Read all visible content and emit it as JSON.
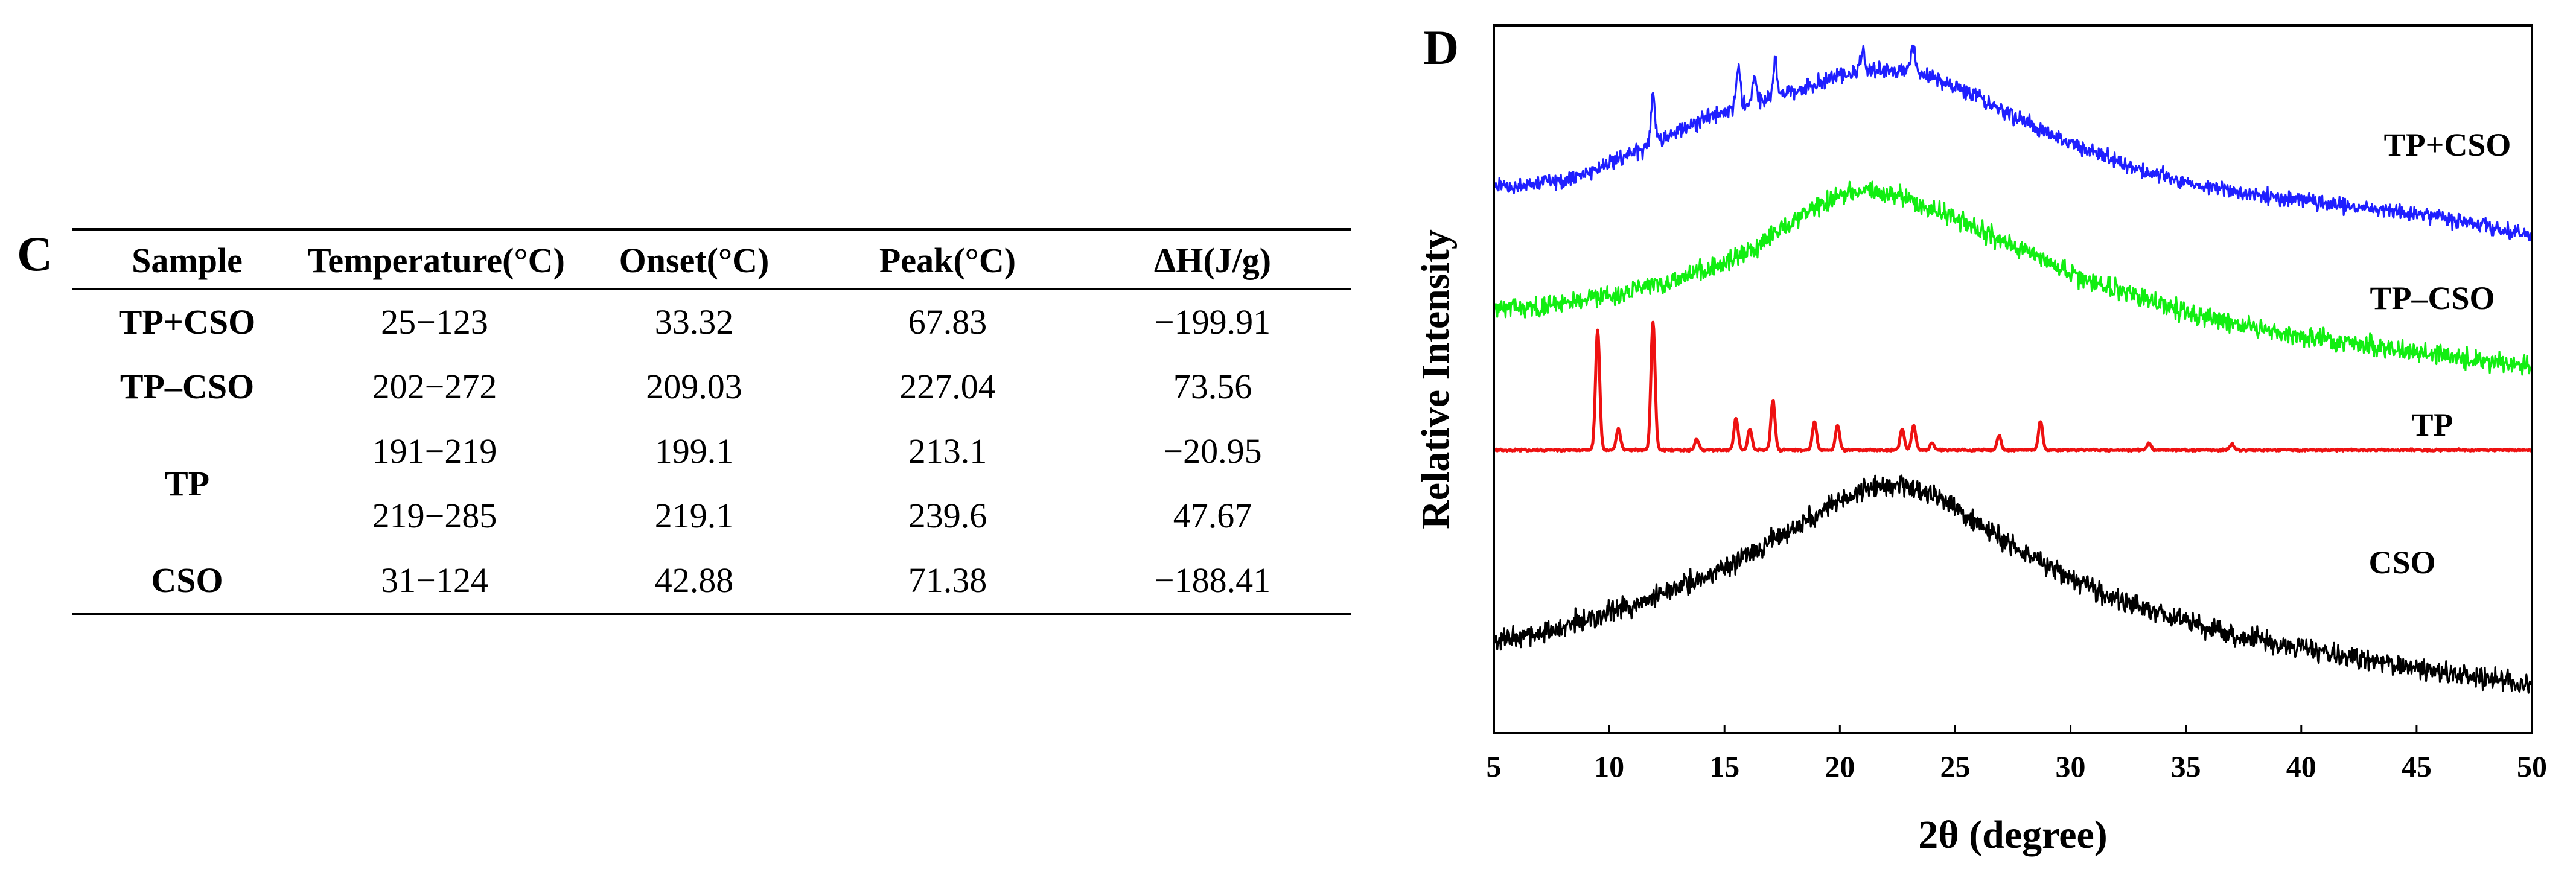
{
  "panel_c": {
    "label": "C",
    "headers": [
      "Sample",
      "Temperature(°C)",
      "Onset(°C)",
      "Peak(°C)",
      "ΔH(J/g)"
    ],
    "rows": [
      {
        "sample": "TP+CSO",
        "temperature": "25−123",
        "onset": "33.32",
        "peak": "67.83",
        "dh": "−199.91"
      },
      {
        "sample": "TP–CSO",
        "temperature": "202−272",
        "onset": "209.03",
        "peak": "227.04",
        "dh": "73.56"
      },
      {
        "sample": "TP",
        "temperature": "191−219",
        "onset": "199.1",
        "peak": "213.1",
        "dh": "−20.95"
      },
      {
        "sample": "TP",
        "temperature": "219−285",
        "onset": "219.1",
        "peak": "239.6",
        "dh": "47.67"
      },
      {
        "sample": "CSO",
        "temperature": "31−124",
        "onset": "42.88",
        "peak": "71.38",
        "dh": "−188.41"
      }
    ]
  },
  "panel_d": {
    "label": "D"
  },
  "chart_data": {
    "type": "line",
    "title": "",
    "xlabel": "2θ (degree)",
    "ylabel": "Relative Intensity",
    "xlim": [
      5,
      50
    ],
    "ylim": [
      0,
      1
    ],
    "xticks": [
      5,
      10,
      15,
      20,
      25,
      30,
      35,
      40,
      45,
      50
    ],
    "xtick_labels": [
      "5",
      "10",
      "15",
      "20",
      "25",
      "30",
      "35",
      "40",
      "45",
      "50"
    ],
    "yticks_shown": false,
    "grid": false,
    "series": [
      {
        "name": "TP+CSO",
        "color": "#1f1fff",
        "x": [
          5,
          6,
          7,
          8,
          9,
          10,
          11,
          12,
          13,
          14,
          15,
          16,
          17,
          18,
          19,
          20,
          21,
          22,
          23,
          24,
          25,
          26,
          27,
          28,
          29,
          30,
          31,
          32,
          33,
          34,
          35,
          36,
          37,
          38,
          39,
          40,
          41,
          42,
          43,
          44,
          45,
          46,
          47,
          48,
          49,
          50
        ],
        "y": [
          0.772,
          0.773,
          0.776,
          0.782,
          0.792,
          0.804,
          0.818,
          0.835,
          0.852,
          0.866,
          0.878,
          0.888,
          0.898,
          0.907,
          0.918,
          0.928,
          0.935,
          0.937,
          0.934,
          0.926,
          0.913,
          0.898,
          0.882,
          0.865,
          0.849,
          0.834,
          0.82,
          0.807,
          0.796,
          0.787,
          0.779,
          0.772,
          0.766,
          0.761,
          0.757,
          0.753,
          0.749,
          0.745,
          0.741,
          0.737,
          0.733,
          0.728,
          0.722,
          0.716,
          0.71,
          0.705
        ],
        "peaks": [
          {
            "x": 11.9,
            "height": 0.07
          },
          {
            "x": 15.6,
            "height": 0.055
          },
          {
            "x": 16.3,
            "height": 0.035
          },
          {
            "x": 17.2,
            "height": 0.05
          },
          {
            "x": 21.0,
            "height": 0.03
          },
          {
            "x": 23.2,
            "height": 0.04
          }
        ],
        "noise": 0.008
      },
      {
        "name": "TP–CSO",
        "color": "#11ee11",
        "x": [
          5,
          6,
          7,
          8,
          9,
          10,
          11,
          12,
          13,
          14,
          15,
          16,
          17,
          18,
          19,
          20,
          21,
          22,
          23,
          24,
          25,
          26,
          27,
          28,
          29,
          30,
          31,
          32,
          33,
          34,
          35,
          36,
          37,
          38,
          39,
          40,
          41,
          42,
          43,
          44,
          45,
          46,
          47,
          48,
          49,
          50
        ],
        "y": [
          0.6,
          0.602,
          0.604,
          0.607,
          0.611,
          0.617,
          0.624,
          0.632,
          0.641,
          0.652,
          0.665,
          0.681,
          0.7,
          0.722,
          0.745,
          0.76,
          0.765,
          0.763,
          0.755,
          0.742,
          0.727,
          0.711,
          0.695,
          0.68,
          0.665,
          0.651,
          0.638,
          0.626,
          0.615,
          0.605,
          0.596,
          0.588,
          0.58,
          0.573,
          0.567,
          0.561,
          0.556,
          0.551,
          0.546,
          0.542,
          0.538,
          0.534,
          0.53,
          0.526,
          0.522,
          0.519
        ],
        "peaks": [],
        "noise": 0.01
      },
      {
        "name": "TP",
        "color": "#ee1111",
        "x": [
          5,
          50
        ],
        "y": [
          0.4,
          0.4
        ],
        "peaks": [
          {
            "x": 9.5,
            "height": 0.17
          },
          {
            "x": 10.4,
            "height": 0.03
          },
          {
            "x": 11.9,
            "height": 0.18
          },
          {
            "x": 13.8,
            "height": 0.015
          },
          {
            "x": 15.5,
            "height": 0.045
          },
          {
            "x": 16.1,
            "height": 0.03
          },
          {
            "x": 17.1,
            "height": 0.07
          },
          {
            "x": 18.9,
            "height": 0.04
          },
          {
            "x": 19.9,
            "height": 0.035
          },
          {
            "x": 22.7,
            "height": 0.03
          },
          {
            "x": 23.2,
            "height": 0.035
          },
          {
            "x": 24.0,
            "height": 0.01
          },
          {
            "x": 26.9,
            "height": 0.02
          },
          {
            "x": 28.7,
            "height": 0.04
          },
          {
            "x": 33.4,
            "height": 0.01
          },
          {
            "x": 37.0,
            "height": 0.008
          }
        ],
        "noise": 0.001
      },
      {
        "name": "CSO",
        "color": "#000000",
        "x": [
          5,
          6,
          7,
          8,
          9,
          10,
          11,
          12,
          13,
          14,
          15,
          16,
          17,
          18,
          19,
          20,
          21,
          22,
          23,
          24,
          25,
          26,
          27,
          28,
          29,
          30,
          31,
          32,
          33,
          34,
          35,
          36,
          37,
          38,
          39,
          40,
          41,
          42,
          43,
          44,
          45,
          46,
          47,
          48,
          49,
          50
        ],
        "y": [
          0.13,
          0.136,
          0.143,
          0.151,
          0.16,
          0.17,
          0.181,
          0.193,
          0.206,
          0.22,
          0.235,
          0.252,
          0.27,
          0.29,
          0.31,
          0.33,
          0.345,
          0.352,
          0.35,
          0.338,
          0.318,
          0.296,
          0.274,
          0.254,
          0.236,
          0.219,
          0.204,
          0.191,
          0.179,
          0.168,
          0.158,
          0.149,
          0.141,
          0.134,
          0.127,
          0.121,
          0.115,
          0.109,
          0.103,
          0.097,
          0.092,
          0.087,
          0.082,
          0.077,
          0.073,
          0.07
        ],
        "peaks": [],
        "noise": 0.011
      }
    ]
  }
}
